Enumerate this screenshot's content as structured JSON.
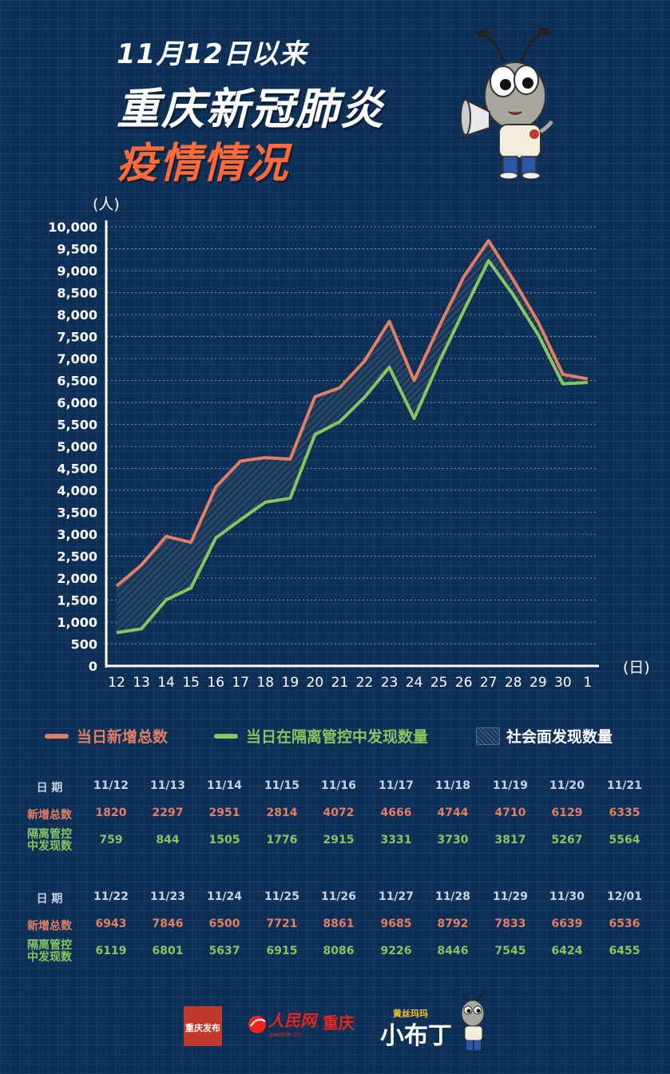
{
  "title": {
    "line1": "11月12日以来",
    "line2": "重庆新冠肺炎",
    "line3": "疫情情况"
  },
  "colors": {
    "background": "#0e2f55",
    "total": "#e27e64",
    "quarantine": "#86c660",
    "community_fill": "#1a3658",
    "accent_title": "#ff6a3a"
  },
  "chart_data": {
    "type": "line",
    "y_unit_label": "(人)",
    "x_unit_label": "(日)",
    "ylim": [
      0,
      10000
    ],
    "yticks": [
      0,
      500,
      1000,
      1500,
      2000,
      2500,
      3000,
      3500,
      4000,
      4500,
      5000,
      5500,
      6000,
      6500,
      7000,
      7500,
      8000,
      8500,
      9000,
      9500,
      10000
    ],
    "ytick_labels": [
      "0",
      "500",
      "1,000",
      "1,500",
      "2,000",
      "2,500",
      "3,000",
      "3,500",
      "4,000",
      "4,500",
      "5,000",
      "5,500",
      "6,000",
      "6,500",
      "7,000",
      "7,500",
      "8,000",
      "8,500",
      "9,000",
      "9,500",
      "10,000"
    ],
    "categories": [
      "12",
      "13",
      "14",
      "15",
      "16",
      "17",
      "18",
      "19",
      "20",
      "21",
      "22",
      "23",
      "24",
      "25",
      "26",
      "27",
      "28",
      "29",
      "30",
      "1"
    ],
    "grid": "horizontal dotted",
    "legend_position": "bottom",
    "series": [
      {
        "name": "当日新增总数",
        "color": "#e27e64",
        "values": [
          1820,
          2297,
          2951,
          2814,
          4072,
          4666,
          4744,
          4710,
          6129,
          6335,
          6943,
          7846,
          6500,
          7721,
          8861,
          9685,
          8792,
          7833,
          6639,
          6536
        ]
      },
      {
        "name": "当日在隔离管控中发现数量",
        "color": "#86c660",
        "values": [
          759,
          844,
          1505,
          1776,
          2915,
          3331,
          3730,
          3817,
          5267,
          5564,
          6119,
          6801,
          5637,
          6915,
          8086,
          9226,
          8446,
          7545,
          6424,
          6455
        ]
      }
    ],
    "area_legend": "社会面发现数量"
  },
  "table": {
    "row_header_date": "日 期",
    "row_header_total": "新增总数",
    "row_header_quarantine_1": "隔离管控",
    "row_header_quarantine_2": "中发现数",
    "block1": {
      "dates": [
        "11/12",
        "11/13",
        "11/14",
        "11/15",
        "11/16",
        "11/17",
        "11/18",
        "11/19",
        "11/20",
        "11/21"
      ],
      "totals": [
        "1820",
        "2297",
        "2951",
        "2814",
        "4072",
        "4666",
        "4744",
        "4710",
        "6129",
        "6335"
      ],
      "quarantine": [
        "759",
        "844",
        "1505",
        "1776",
        "2915",
        "3331",
        "3730",
        "3817",
        "5267",
        "5564"
      ]
    },
    "block2": {
      "dates": [
        "11/22",
        "11/23",
        "11/24",
        "11/25",
        "11/26",
        "11/27",
        "11/28",
        "11/29",
        "11/30",
        "12/01"
      ],
      "totals": [
        "6943",
        "7846",
        "6500",
        "7721",
        "8861",
        "9685",
        "8792",
        "7833",
        "6639",
        "6536"
      ],
      "quarantine": [
        "6119",
        "6801",
        "5637",
        "6915",
        "8086",
        "9226",
        "8446",
        "7545",
        "6424",
        "6455"
      ]
    }
  },
  "footer": {
    "logo1_text": "重庆发布",
    "logo2_text": "人民网",
    "logo2_sub": "people.cn",
    "logo2_city": "重庆",
    "logo3_top": "黄丝玛玛",
    "logo3_main": "小布丁"
  },
  "icons": {
    "mascot": "ant-mascot-megaphone-icon",
    "mascot_small": "ant-mascot-small-icon"
  }
}
